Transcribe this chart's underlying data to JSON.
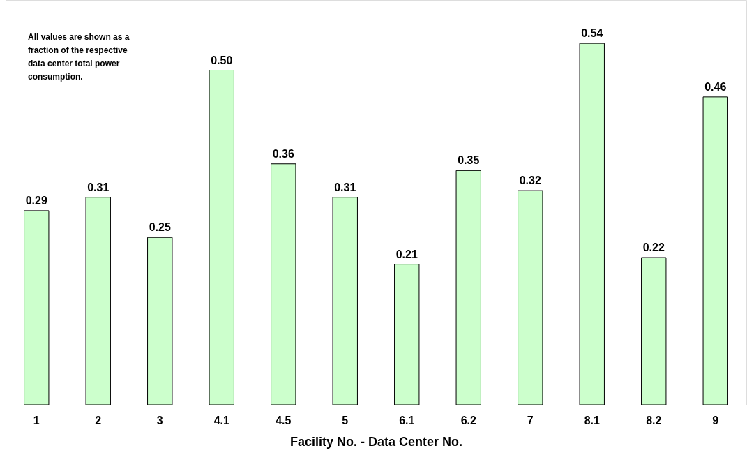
{
  "chart_data": {
    "type": "bar",
    "xlabel": "Facility No. - Data Center No.",
    "categories": [
      "1",
      "2",
      "3",
      "4.1",
      "4.5",
      "5",
      "6.1",
      "6.2",
      "7",
      "8.1",
      "8.2",
      "9"
    ],
    "values": [
      0.29,
      0.31,
      0.25,
      0.5,
      0.36,
      0.31,
      0.21,
      0.35,
      0.32,
      0.54,
      0.22,
      0.46
    ],
    "value_labels": [
      "0.29",
      "0.31",
      "0.25",
      "0.50",
      "0.36",
      "0.31",
      "0.21",
      "0.35",
      "0.32",
      "0.54",
      "0.22",
      "0.46"
    ],
    "color": "#ccffcc",
    "relative": false,
    "grid": false,
    "annotations": [
      "All values are shown as a fraction of the respective data center total power consumption."
    ]
  }
}
